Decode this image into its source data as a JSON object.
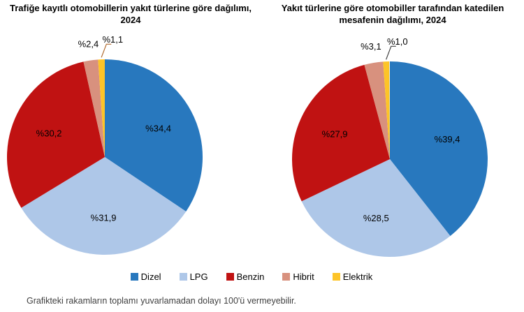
{
  "page": {
    "footnote": "Grafikteki rakamların toplamı yuvarlamadan dolayı 100'ü vermeyebilir."
  },
  "palette": {
    "Dizel": "#2878BE",
    "LPG": "#AEC7E8",
    "Benzin": "#C01212",
    "Hibrit": "#D8917E",
    "Elektrik": "#FDC428"
  },
  "legend": {
    "items": [
      "Dizel",
      "LPG",
      "Benzin",
      "Hibrit",
      "Elektrik"
    ],
    "position": "bottom"
  },
  "chart_data": [
    {
      "type": "pie",
      "title": "Trafiğe kayıtlı otomobillerin yakıt türlerine göre dağılımı, 2024",
      "categories": [
        "Dizel",
        "LPG",
        "Benzin",
        "Hibrit",
        "Elektrik"
      ],
      "values": [
        34.4,
        31.9,
        30.2,
        2.4,
        1.1
      ],
      "labels": [
        "%34,4",
        "%31,9",
        "%30,2",
        "%2,4",
        "%1,1"
      ],
      "rotation": "clockwise-from-top",
      "leader_color": "#B06A2E"
    },
    {
      "type": "pie",
      "title": "Yakıt türlerine göre otomobiller tarafından katedilen mesafenin dağılımı, 2024",
      "categories": [
        "Dizel",
        "LPG",
        "Benzin",
        "Hibrit",
        "Elektrik"
      ],
      "values": [
        39.4,
        28.5,
        27.9,
        3.1,
        1.0
      ],
      "labels": [
        "%39,4",
        "%28,5",
        "%27,9",
        "%3,1",
        "%1,0"
      ],
      "rotation": "clockwise-from-top",
      "leader_color": "#404040"
    }
  ]
}
